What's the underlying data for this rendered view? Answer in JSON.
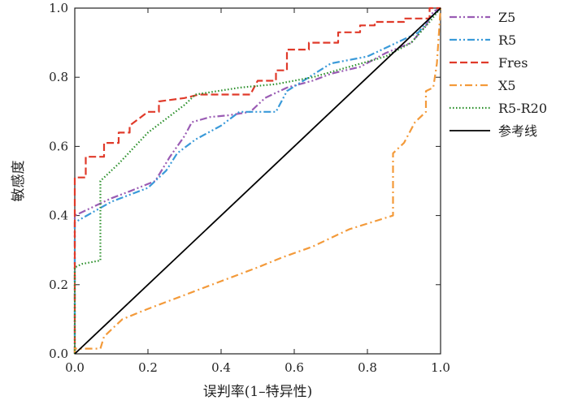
{
  "chart_data": {
    "type": "line",
    "title": "",
    "xlabel": "误判率(1–特异性)",
    "ylabel": "敏感度",
    "xlim": [
      0,
      1
    ],
    "ylim": [
      0,
      1
    ],
    "x_ticks": [
      "0.0",
      "0.2",
      "0.4",
      "0.6",
      "0.8",
      "1.0"
    ],
    "y_ticks": [
      "0.0",
      "0.2",
      "0.4",
      "0.6",
      "0.8",
      "1.0"
    ],
    "grid": false,
    "legend_position": "right",
    "series": [
      {
        "name": "Z5",
        "color": "#9a5cb4",
        "dash": "dash-dot-dot",
        "points": [
          [
            0,
            0
          ],
          [
            0,
            0.4
          ],
          [
            0.04,
            0.42
          ],
          [
            0.1,
            0.45
          ],
          [
            0.15,
            0.47
          ],
          [
            0.22,
            0.5
          ],
          [
            0.26,
            0.57
          ],
          [
            0.3,
            0.63
          ],
          [
            0.32,
            0.67
          ],
          [
            0.37,
            0.685
          ],
          [
            0.42,
            0.69
          ],
          [
            0.48,
            0.7
          ],
          [
            0.52,
            0.74
          ],
          [
            0.58,
            0.77
          ],
          [
            0.65,
            0.79
          ],
          [
            0.7,
            0.81
          ],
          [
            0.78,
            0.83
          ],
          [
            0.85,
            0.87
          ],
          [
            0.92,
            0.9
          ],
          [
            0.96,
            0.95
          ],
          [
            0.98,
            0.99
          ],
          [
            1,
            1
          ]
        ]
      },
      {
        "name": "R5",
        "color": "#3a9ad9",
        "dash": "dash-dot-dot",
        "points": [
          [
            0,
            0
          ],
          [
            0,
            0.38
          ],
          [
            0.05,
            0.41
          ],
          [
            0.1,
            0.44
          ],
          [
            0.15,
            0.46
          ],
          [
            0.2,
            0.48
          ],
          [
            0.25,
            0.53
          ],
          [
            0.28,
            0.58
          ],
          [
            0.33,
            0.62
          ],
          [
            0.4,
            0.66
          ],
          [
            0.45,
            0.7
          ],
          [
            0.55,
            0.7
          ],
          [
            0.58,
            0.76
          ],
          [
            0.64,
            0.8
          ],
          [
            0.7,
            0.84
          ],
          [
            0.8,
            0.86
          ],
          [
            0.86,
            0.89
          ],
          [
            0.94,
            0.93
          ],
          [
            0.97,
            0.97
          ],
          [
            1,
            1
          ]
        ]
      },
      {
        "name": "Fres",
        "color": "#e03a2a",
        "dash": "dashed",
        "points": [
          [
            0,
            0
          ],
          [
            0,
            0.51
          ],
          [
            0.03,
            0.51
          ],
          [
            0.03,
            0.57
          ],
          [
            0.08,
            0.57
          ],
          [
            0.08,
            0.61
          ],
          [
            0.12,
            0.61
          ],
          [
            0.12,
            0.64
          ],
          [
            0.15,
            0.64
          ],
          [
            0.15,
            0.66
          ],
          [
            0.2,
            0.7
          ],
          [
            0.23,
            0.7
          ],
          [
            0.23,
            0.73
          ],
          [
            0.3,
            0.74
          ],
          [
            0.34,
            0.75
          ],
          [
            0.48,
            0.75
          ],
          [
            0.5,
            0.79
          ],
          [
            0.55,
            0.79
          ],
          [
            0.55,
            0.82
          ],
          [
            0.58,
            0.82
          ],
          [
            0.58,
            0.88
          ],
          [
            0.64,
            0.88
          ],
          [
            0.64,
            0.9
          ],
          [
            0.72,
            0.9
          ],
          [
            0.72,
            0.93
          ],
          [
            0.78,
            0.93
          ],
          [
            0.78,
            0.95
          ],
          [
            0.82,
            0.95
          ],
          [
            0.82,
            0.96
          ],
          [
            0.9,
            0.96
          ],
          [
            0.9,
            0.97
          ],
          [
            0.97,
            0.97
          ],
          [
            0.97,
            1.0
          ],
          [
            1,
            1
          ]
        ]
      },
      {
        "name": "X5",
        "color": "#f39a3a",
        "dash": "dash-dot",
        "points": [
          [
            0,
            0
          ],
          [
            0,
            0.015
          ],
          [
            0.07,
            0.015
          ],
          [
            0.08,
            0.05
          ],
          [
            0.13,
            0.1
          ],
          [
            0.2,
            0.13
          ],
          [
            0.3,
            0.17
          ],
          [
            0.4,
            0.21
          ],
          [
            0.5,
            0.25
          ],
          [
            0.57,
            0.28
          ],
          [
            0.65,
            0.31
          ],
          [
            0.75,
            0.36
          ],
          [
            0.87,
            0.4
          ],
          [
            0.87,
            0.58
          ],
          [
            0.9,
            0.61
          ],
          [
            0.93,
            0.67
          ],
          [
            0.96,
            0.7
          ],
          [
            0.96,
            0.76
          ],
          [
            0.98,
            0.77
          ],
          [
            0.99,
            0.84
          ],
          [
            1,
            1
          ]
        ]
      },
      {
        "name": "R5-R20",
        "color": "#2a8f2a",
        "dash": "dotted",
        "points": [
          [
            0,
            0
          ],
          [
            0,
            0.25
          ],
          [
            0.02,
            0.26
          ],
          [
            0.07,
            0.27
          ],
          [
            0.07,
            0.5
          ],
          [
            0.12,
            0.55
          ],
          [
            0.2,
            0.64
          ],
          [
            0.3,
            0.72
          ],
          [
            0.33,
            0.75
          ],
          [
            0.45,
            0.77
          ],
          [
            0.55,
            0.78
          ],
          [
            0.65,
            0.8
          ],
          [
            0.75,
            0.83
          ],
          [
            0.85,
            0.86
          ],
          [
            0.92,
            0.9
          ],
          [
            0.97,
            0.96
          ],
          [
            1,
            1
          ]
        ]
      },
      {
        "name": "参考线",
        "color": "#000000",
        "dash": "solid",
        "points": [
          [
            0,
            0
          ],
          [
            1,
            1
          ]
        ]
      }
    ]
  }
}
